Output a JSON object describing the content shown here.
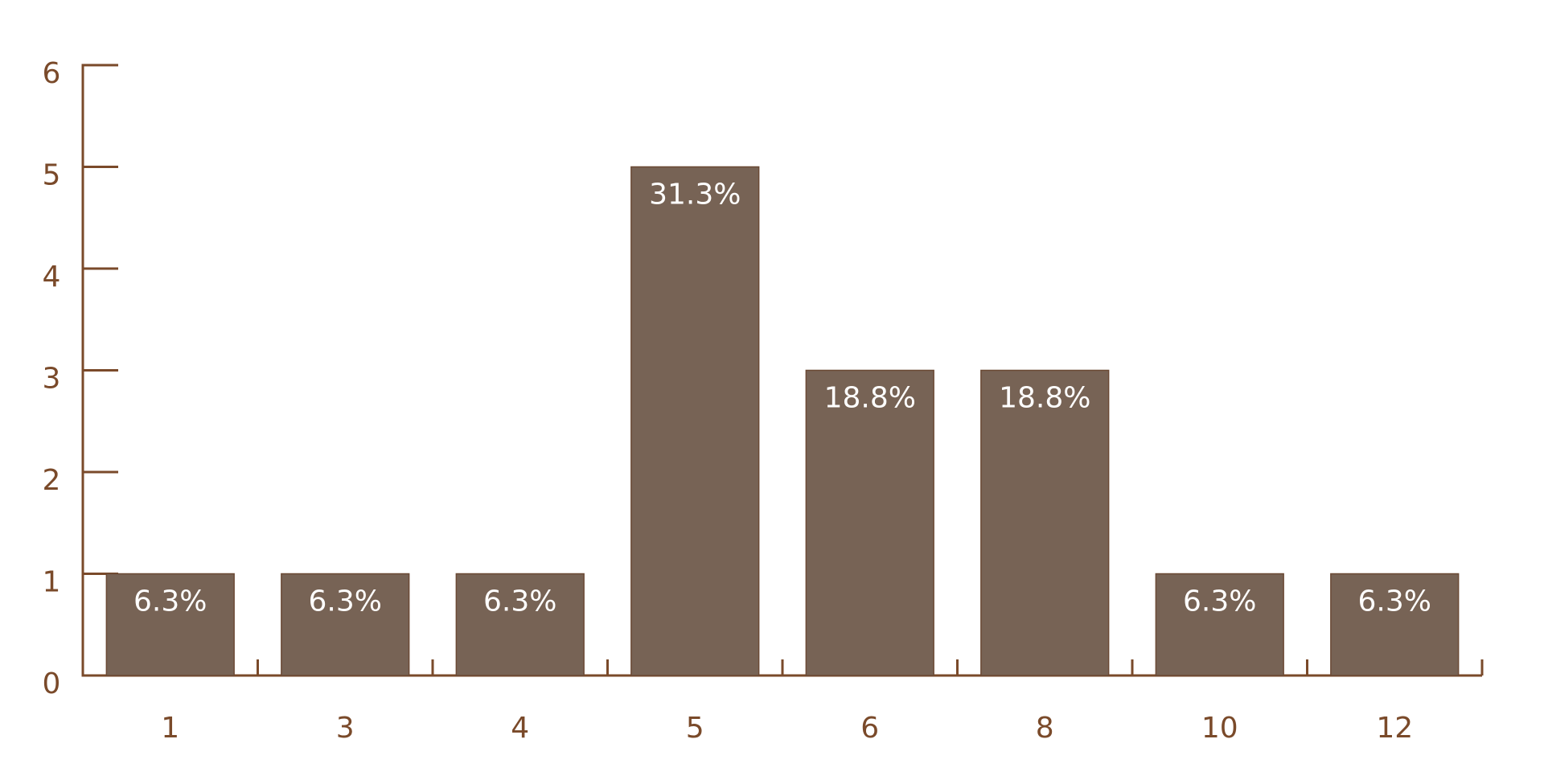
{
  "chart_data": {
    "type": "bar",
    "categories": [
      "1",
      "3",
      "4",
      "5",
      "6",
      "8",
      "10",
      "12"
    ],
    "values": [
      1,
      1,
      1,
      5,
      3,
      3,
      1,
      1
    ],
    "value_labels": [
      "6.3%",
      "6.3%",
      "6.3%",
      "31.3%",
      "18.8%",
      "18.8%",
      "6.3%",
      "6.3%"
    ],
    "color": "#776355",
    "ylim": [
      0,
      6
    ],
    "yticks": [
      0,
      1,
      2,
      3,
      4,
      5,
      6
    ],
    "grid": false
  }
}
